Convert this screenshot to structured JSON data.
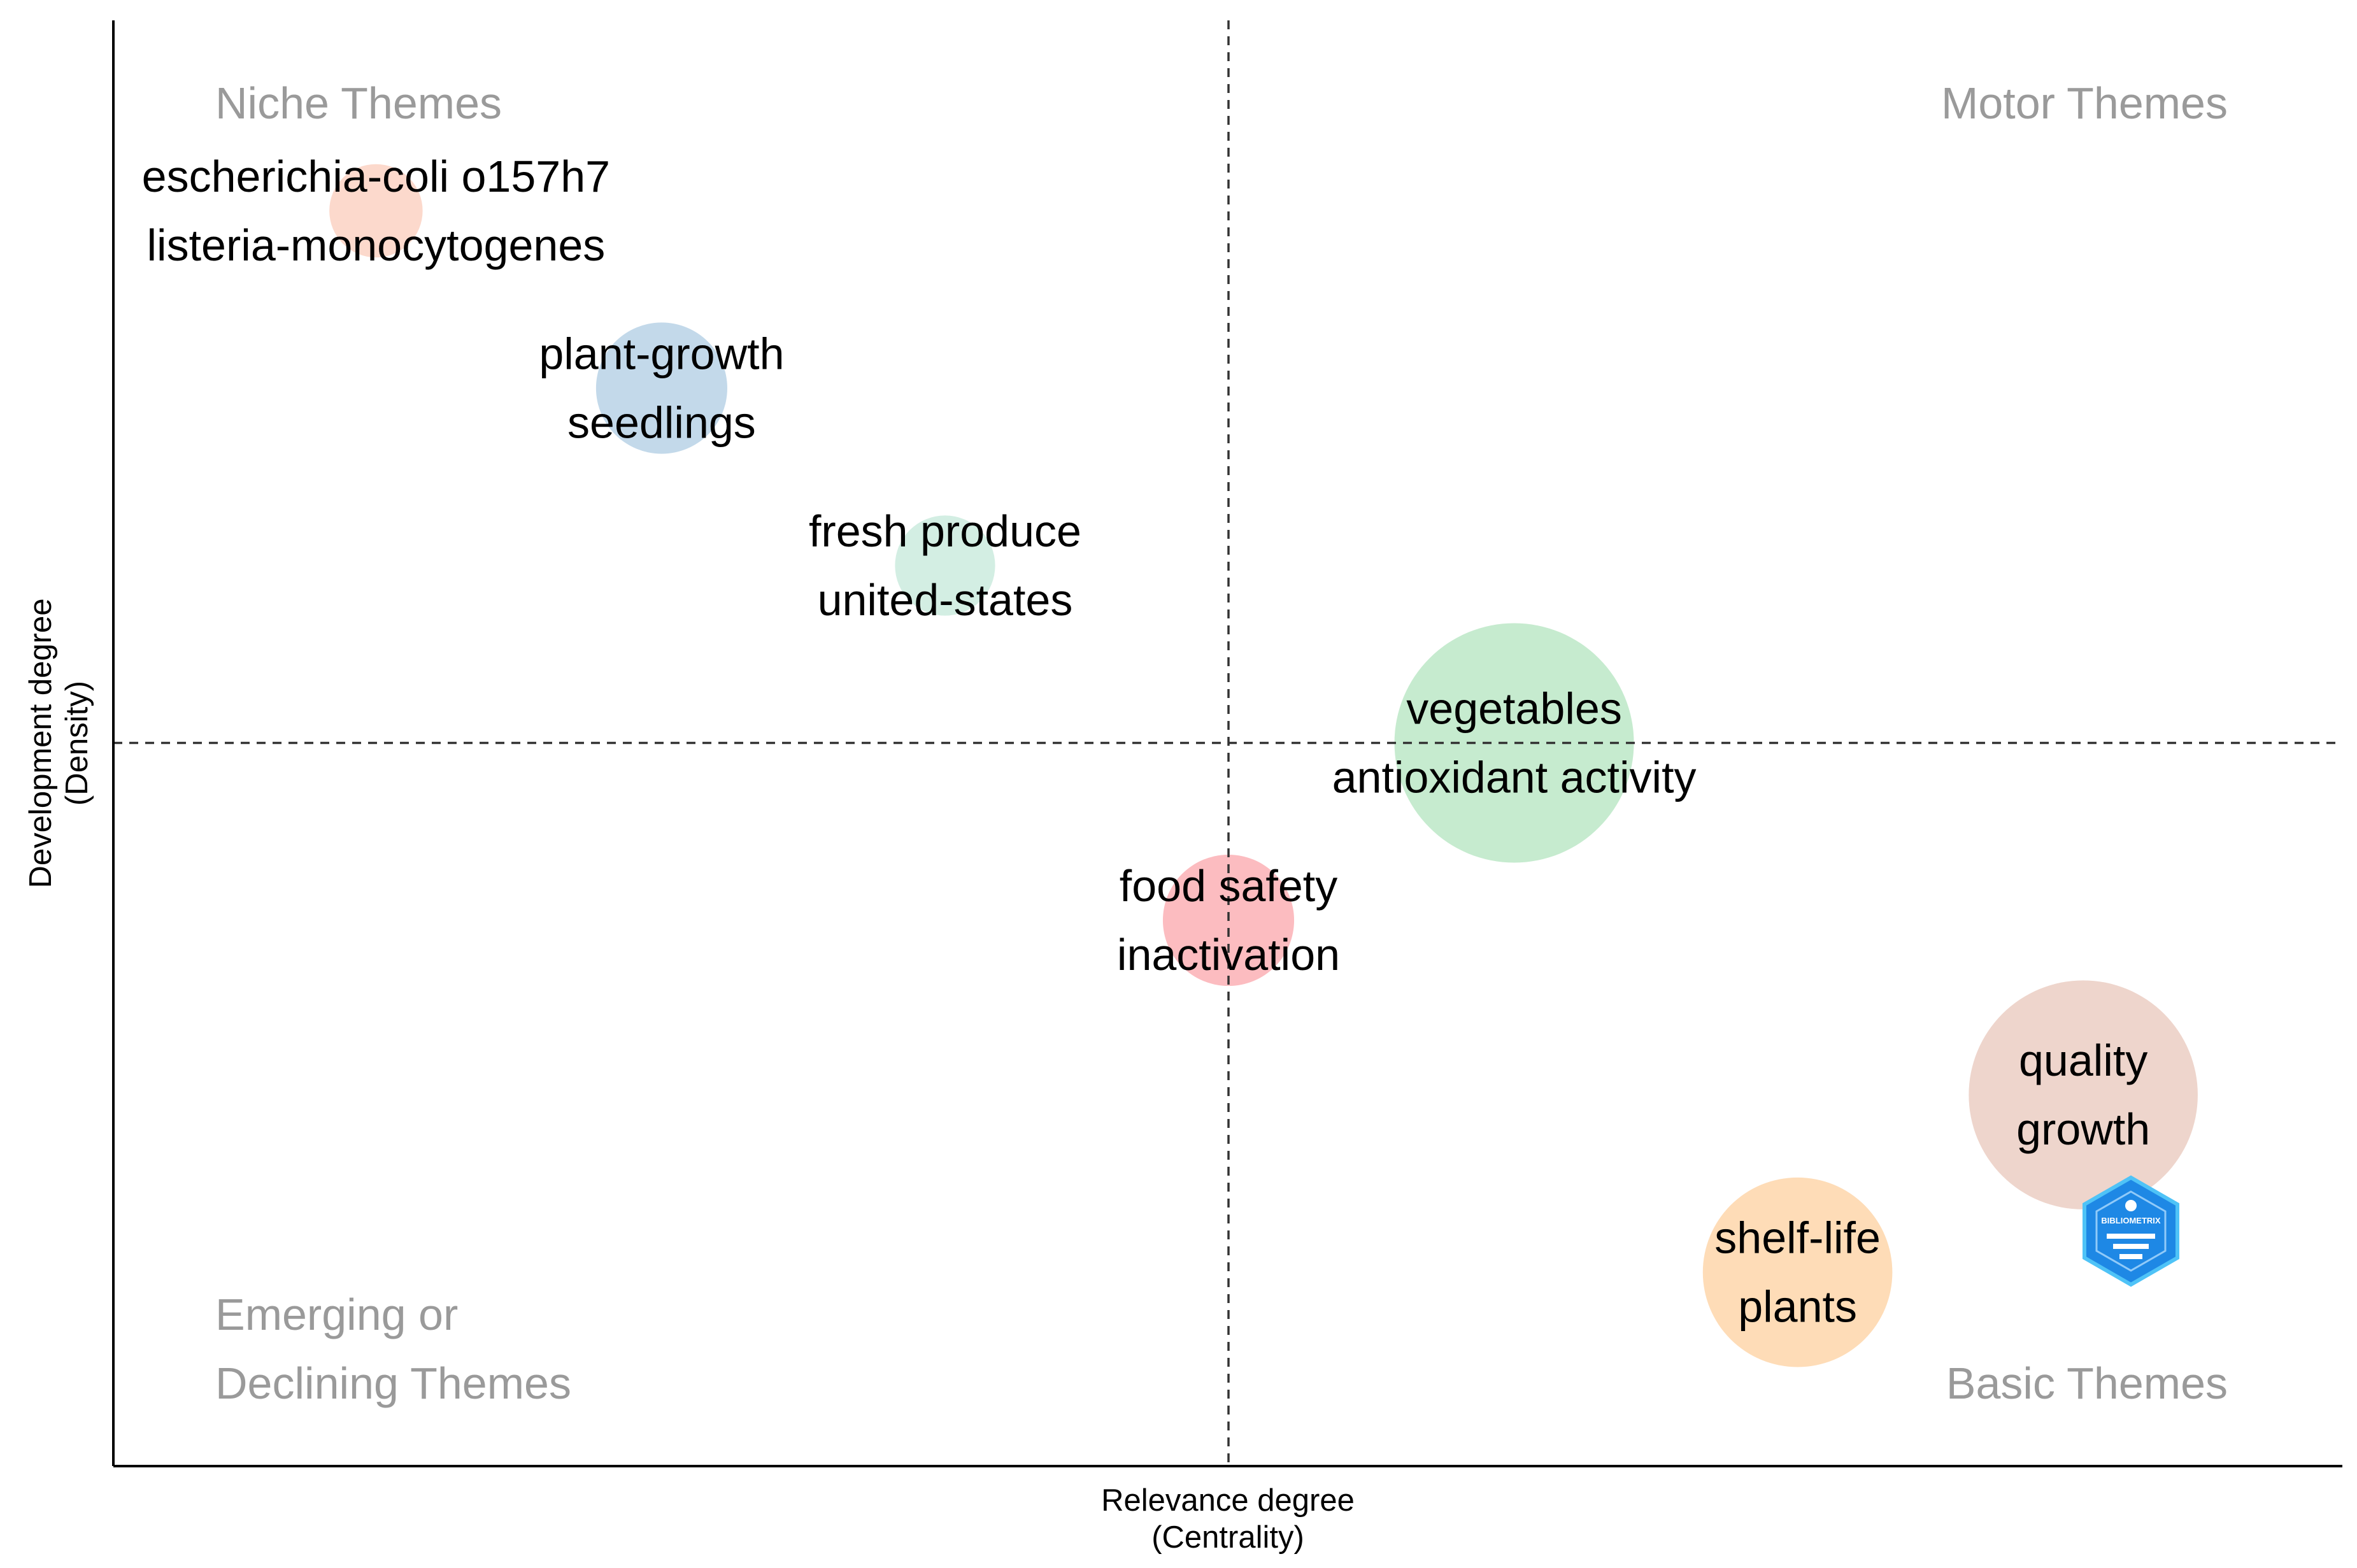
{
  "chart_data": {
    "type": "scatter",
    "title": "",
    "xlabel": [
      "Relevance degree",
      "(Centrality)"
    ],
    "ylabel": [
      "Development degree",
      "(Density)"
    ],
    "xlim": [
      0,
      1
    ],
    "ylim": [
      0,
      1
    ],
    "reference_lines": {
      "x": 0.5,
      "y": 0.5
    },
    "quadrant_labels": {
      "top_left": [
        "Niche Themes"
      ],
      "top_right": [
        "Motor Themes"
      ],
      "bottom_left": [
        "Emerging or",
        "Declining Themes"
      ],
      "bottom_right": [
        "Basic Themes"
      ]
    },
    "clusters": [
      {
        "labels": [
          "escherichia-coli o157h7",
          "listeria-monocytogenes"
        ],
        "x": 0.121,
        "y": 0.881,
        "size": 0.08,
        "color": "#fcd9cc"
      },
      {
        "labels": [
          "plant-growth",
          "seedlings"
        ],
        "x": 0.248,
        "y": 0.754,
        "size": 0.22,
        "color": "#c3d9ea"
      },
      {
        "labels": [
          "fresh produce",
          "united-states"
        ],
        "x": 0.374,
        "y": 0.627,
        "size": 0.1,
        "color": "#d3eee3"
      },
      {
        "labels": [
          "vegetables",
          "antioxidant activity"
        ],
        "x": 0.627,
        "y": 0.5,
        "size": 1.0,
        "color": "#c6ebcf"
      },
      {
        "labels": [
          "food safety",
          "inactivation"
        ],
        "x": 0.5,
        "y": 0.373,
        "size": 0.22,
        "color": "#fcbcc0"
      },
      {
        "labels": [
          "quality",
          "growth"
        ],
        "x": 0.88,
        "y": 0.248,
        "size": 0.9,
        "color": "#eed5cc"
      },
      {
        "labels": [
          "shelf-life",
          "plants"
        ],
        "x": 0.753,
        "y": 0.121,
        "size": 0.57,
        "color": "#fedcb7"
      }
    ],
    "watermark": "BIBLIOMETRIX"
  }
}
